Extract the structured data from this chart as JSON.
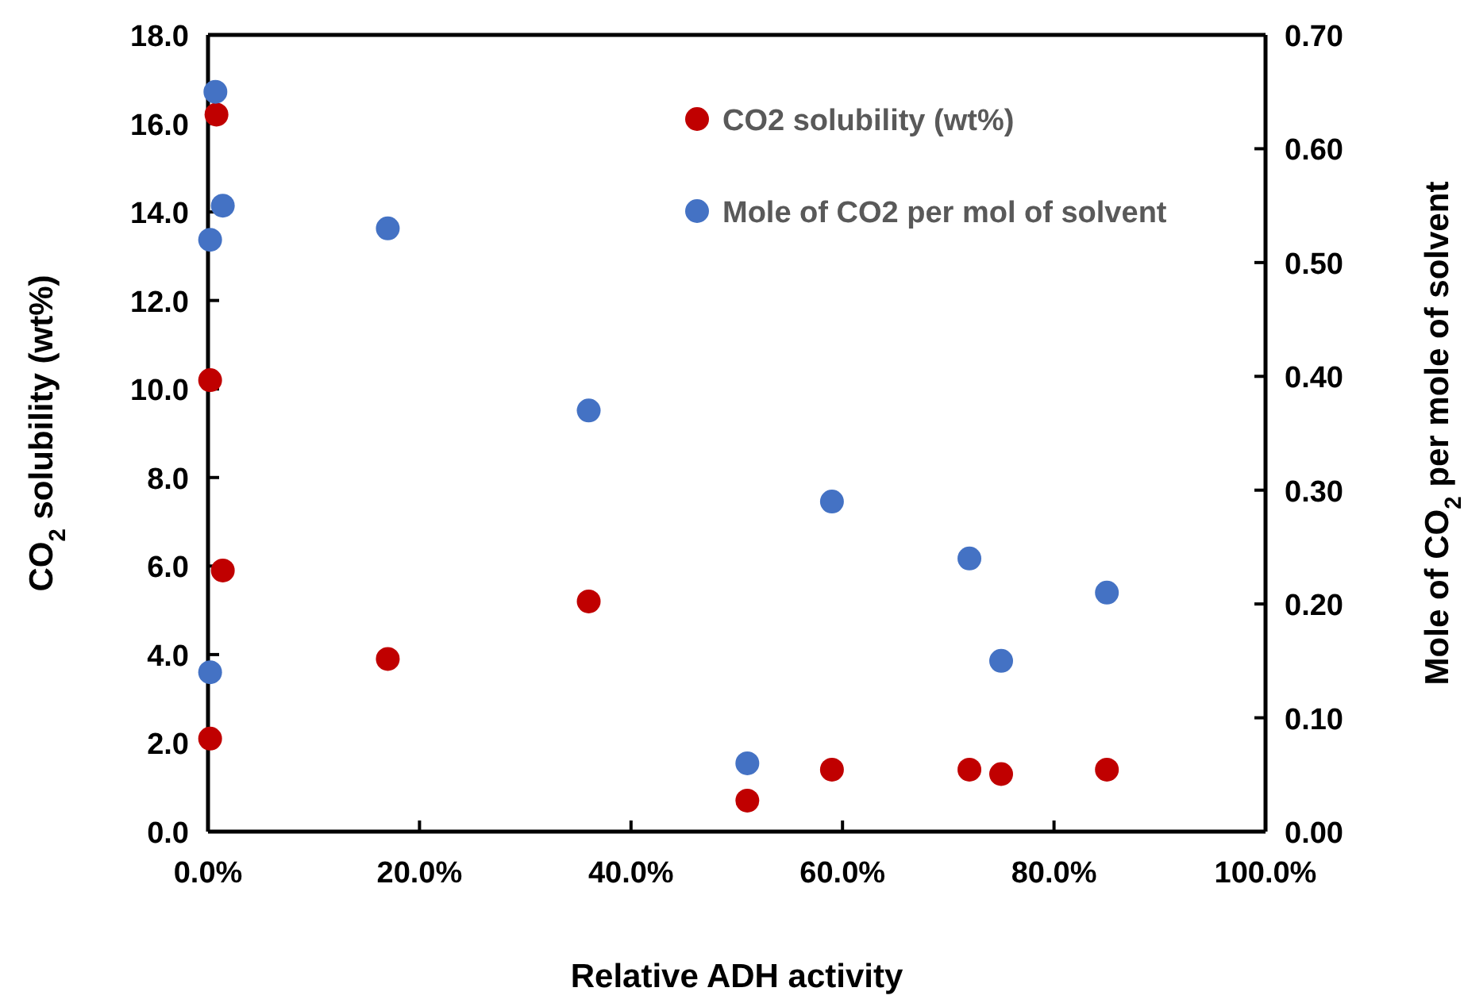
{
  "chart_data": {
    "type": "scatter",
    "xlabel": "Relative ADH activity",
    "ylabel": "CO$_{2}$ solubility (wt%)",
    "y2label": "Mole of CO$_{2}$ per mole of solvent",
    "xlim": [
      0,
      100
    ],
    "xticks": [
      {
        "value": 0,
        "label": "0.0%"
      },
      {
        "value": 20,
        "label": "20.0%"
      },
      {
        "value": 40,
        "label": "40.0%"
      },
      {
        "value": 60,
        "label": "60.0%"
      },
      {
        "value": 80,
        "label": "80.0%"
      },
      {
        "value": 100,
        "label": "100.0%"
      }
    ],
    "ylim": [
      0,
      18
    ],
    "yticks": [
      {
        "value": 0,
        "label": "0.0"
      },
      {
        "value": 2,
        "label": "2.0"
      },
      {
        "value": 4,
        "label": "4.0"
      },
      {
        "value": 6,
        "label": "6.0"
      },
      {
        "value": 8,
        "label": "8.0"
      },
      {
        "value": 10,
        "label": "10.0"
      },
      {
        "value": 12,
        "label": "12.0"
      },
      {
        "value": 14,
        "label": "14.0"
      },
      {
        "value": 16,
        "label": "16.0"
      },
      {
        "value": 18,
        "label": "18.0"
      }
    ],
    "y2lim": [
      0,
      0.7
    ],
    "y2ticks": [
      {
        "value": 0,
        "label": "0.00"
      },
      {
        "value": 0.1,
        "label": "0.10"
      },
      {
        "value": 0.2,
        "label": "0.20"
      },
      {
        "value": 0.3,
        "label": "0.30"
      },
      {
        "value": 0.4,
        "label": "0.40"
      },
      {
        "value": 0.5,
        "label": "0.50"
      },
      {
        "value": 0.6,
        "label": "0.60"
      },
      {
        "value": 0.7,
        "label": "0.70"
      }
    ],
    "grid": false,
    "legend": "top right",
    "marker": "circle",
    "series": [
      {
        "name": "CO2 solubility (wt%)",
        "color": "#c00000",
        "x": [
          0.8,
          0.2,
          1.4,
          17,
          0.2,
          36,
          51,
          59,
          72,
          75,
          85
        ],
        "values": [
          16.2,
          10.2,
          5.9,
          3.9,
          2.1,
          5.2,
          0.7,
          1.4,
          1.4,
          1.3,
          1.4
        ]
      },
      {
        "name": "Mole of CO2 per mol of solvent",
        "color": "#4472c4",
        "axis": "y2",
        "x": [
          0.7,
          1.4,
          0.2,
          17,
          0.2,
          36,
          51,
          59,
          72,
          75,
          85
        ],
        "values": [
          0.65,
          0.55,
          0.52,
          0.53,
          0.14,
          0.37,
          0.06,
          0.29,
          0.24,
          0.15,
          0.21
        ]
      }
    ]
  }
}
